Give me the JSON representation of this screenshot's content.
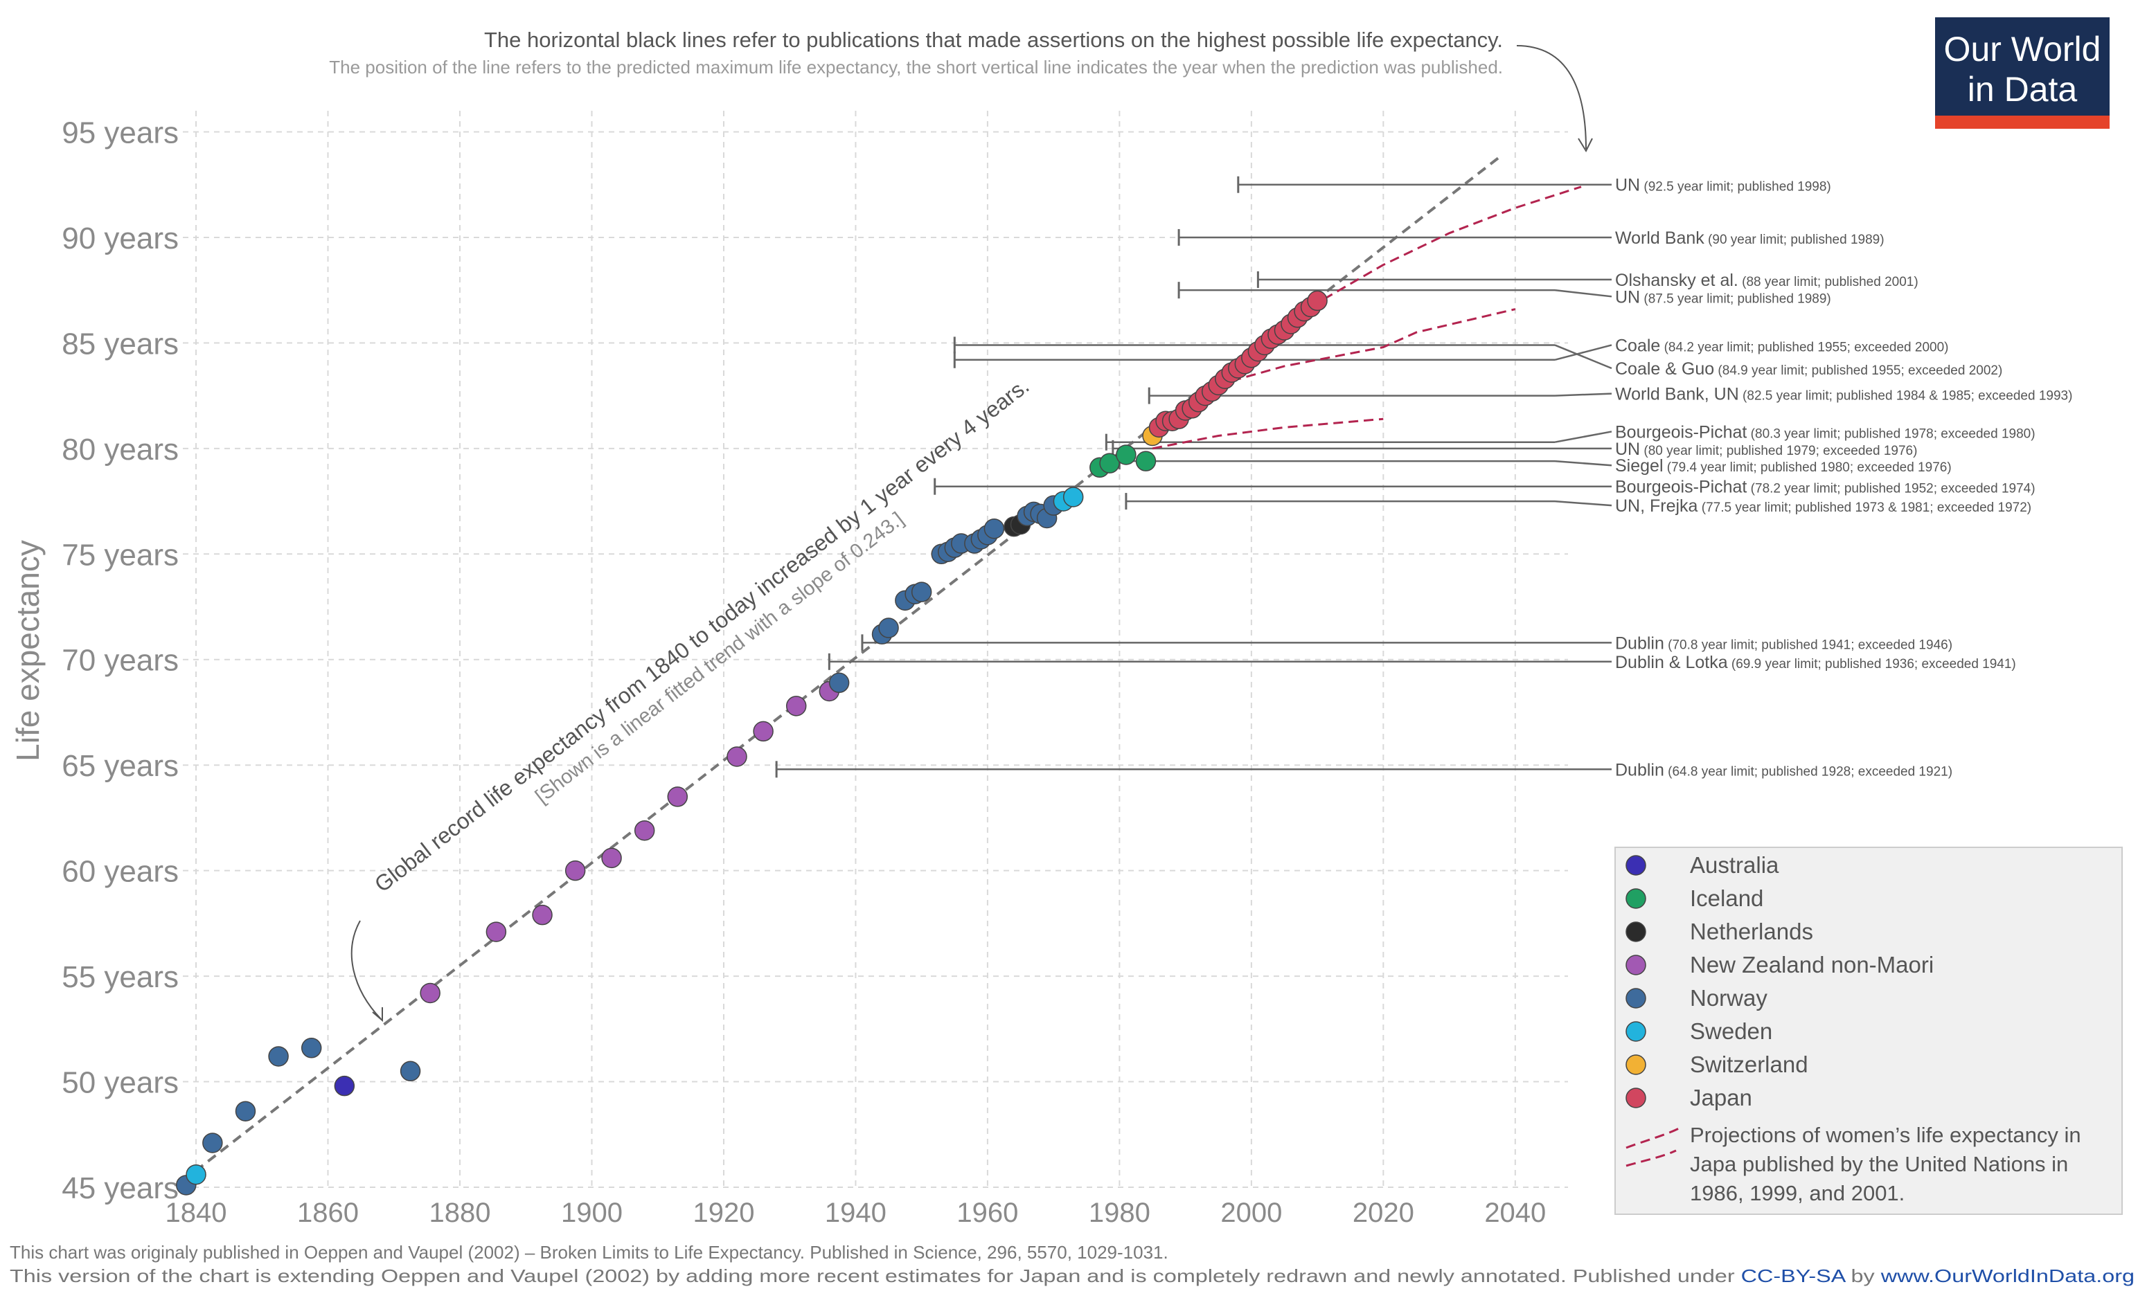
{
  "header": {
    "note_main": "The horizontal black lines refer to publications that made assertions on the highest possible life expectancy.",
    "note_sub": "The position of the line refers to the predicted maximum life expectancy, the short vertical line indicates the year when the prediction was published."
  },
  "logo": {
    "line1": "Our World",
    "line2": "in Data",
    "bg": "#1a2f55",
    "accent": "#e5432a"
  },
  "footer": {
    "line1": "This chart was originaly published in Oeppen and Vaupel (2002) – Broken Limits to Life Expectancy. Published in Science, 296, 5570, 1029-1031.",
    "line2_prefix": "This version of the chart is extending Oeppen and Vaupel (2002) by adding more recent estimates for Japan and is completely redrawn and newly annotated. Published under ",
    "license": "CC-BY-SA",
    "by": " by ",
    "site": "www.OurWorldInData.org",
    "link_color": "#1f4fa8"
  },
  "chart_data": {
    "type": "scatter",
    "ylabel": "Life expectancy",
    "xlim": [
      1838,
      2048
    ],
    "ylim": [
      45,
      96
    ],
    "x_ticks": [
      1840,
      1860,
      1880,
      1900,
      1920,
      1940,
      1960,
      1980,
      2000,
      2020,
      2040
    ],
    "y_ticks": [
      {
        "value": 45,
        "label": "45 years"
      },
      {
        "value": 50,
        "label": "50 years"
      },
      {
        "value": 55,
        "label": "55 years"
      },
      {
        "value": 60,
        "label": "60 years"
      },
      {
        "value": 65,
        "label": "65 years"
      },
      {
        "value": 70,
        "label": "70 years"
      },
      {
        "value": 75,
        "label": "75 years"
      },
      {
        "value": 80,
        "label": "80 years"
      },
      {
        "value": 85,
        "label": "85 years"
      },
      {
        "value": 90,
        "label": "90 years"
      },
      {
        "value": 95,
        "label": "95 years"
      }
    ],
    "grid": true,
    "trend": {
      "slope": 0.243,
      "from": [
        1838,
        45.3
      ],
      "to": [
        2038,
        93.9
      ],
      "annotation_line1": "Global record life expectancy from 1840 to today increased by 1 year every 4 years.",
      "annotation_line2": "[Shown is a linear fitted trend with a slope of 0.243.]"
    },
    "series": [
      {
        "name": "Australia",
        "color": "#3b2fb3",
        "points": [
          [
            1862.5,
            49.8
          ]
        ]
      },
      {
        "name": "Iceland",
        "color": "#20a063",
        "points": [
          [
            1977,
            79.1
          ],
          [
            1978.5,
            79.3
          ],
          [
            1981,
            79.7
          ],
          [
            1984,
            79.4
          ]
        ]
      },
      {
        "name": "Netherlands",
        "color": "#2b2b2b",
        "points": [
          [
            1964,
            76.3
          ],
          [
            1965,
            76.4
          ]
        ]
      },
      {
        "name": "New Zealand non-Maori",
        "color": "#a259b3",
        "points": [
          [
            1875.5,
            54.2
          ],
          [
            1885.5,
            57.1
          ],
          [
            1892.5,
            57.9
          ],
          [
            1897.5,
            60.0
          ],
          [
            1903,
            60.6
          ],
          [
            1908,
            61.9
          ],
          [
            1913,
            63.5
          ],
          [
            1922,
            65.4
          ],
          [
            1926,
            66.6
          ],
          [
            1931,
            67.8
          ],
          [
            1936,
            68.5
          ]
        ]
      },
      {
        "name": "Norway",
        "color": "#3e6b9c",
        "points": [
          [
            1838.5,
            45.1
          ],
          [
            1842.5,
            47.1
          ],
          [
            1847.5,
            48.6
          ],
          [
            1852.5,
            51.2
          ],
          [
            1857.5,
            51.6
          ],
          [
            1872.5,
            50.5
          ],
          [
            1937.5,
            68.9
          ],
          [
            1944,
            71.2
          ],
          [
            1945,
            71.5
          ],
          [
            1947.5,
            72.8
          ],
          [
            1949,
            73.1
          ],
          [
            1950,
            73.2
          ],
          [
            1953,
            75.0
          ],
          [
            1954,
            75.1
          ],
          [
            1955,
            75.3
          ],
          [
            1956,
            75.5
          ],
          [
            1958,
            75.5
          ],
          [
            1959,
            75.7
          ],
          [
            1960,
            75.9
          ],
          [
            1961,
            76.2
          ],
          [
            1966,
            76.8
          ],
          [
            1967,
            77.0
          ],
          [
            1968,
            76.9
          ],
          [
            1969,
            76.7
          ],
          [
            1970,
            77.3
          ]
        ]
      },
      {
        "name": "Sweden",
        "color": "#22b3dd",
        "points": [
          [
            1840,
            45.6
          ],
          [
            1971.5,
            77.5
          ],
          [
            1973,
            77.7
          ]
        ]
      },
      {
        "name": "Switzerland",
        "color": "#f2b134",
        "points": [
          [
            1985,
            80.6
          ]
        ]
      },
      {
        "name": "Japan",
        "color": "#d1465f",
        "points": [
          [
            1986,
            81.0
          ],
          [
            1987,
            81.3
          ],
          [
            1988,
            81.3
          ],
          [
            1989,
            81.4
          ],
          [
            1990,
            81.8
          ],
          [
            1991,
            81.9
          ],
          [
            1992,
            82.2
          ],
          [
            1993,
            82.5
          ],
          [
            1994,
            82.7
          ],
          [
            1995,
            83.0
          ],
          [
            1996,
            83.3
          ],
          [
            1997,
            83.6
          ],
          [
            1998,
            83.8
          ],
          [
            1999,
            84.0
          ],
          [
            2000,
            84.3
          ],
          [
            2001,
            84.6
          ],
          [
            2002,
            84.9
          ],
          [
            2003,
            85.2
          ],
          [
            2004,
            85.4
          ],
          [
            2005,
            85.6
          ],
          [
            2006,
            85.9
          ],
          [
            2007,
            86.2
          ],
          [
            2008,
            86.5
          ],
          [
            2009,
            86.7
          ],
          [
            2010,
            87.0
          ]
        ]
      }
    ],
    "projections": {
      "name": "Projections of women’s life expectancy in Japa published by the United Nations in 1986, 1999, and 2001.",
      "legend_lines": [
        "Projections of women’s life expectancy in",
        "Japa published by the United Nations in",
        "1986, 1999, and 2001."
      ],
      "color": "#b3244f",
      "lines": [
        [
          [
            1985,
            80.0
          ],
          [
            1995,
            80.6
          ],
          [
            2005,
            81.0
          ],
          [
            2020,
            81.4
          ]
        ],
        [
          [
            1997,
            83.2
          ],
          [
            2005,
            83.9
          ],
          [
            2020,
            84.8
          ],
          [
            2025,
            85.5
          ],
          [
            2040,
            86.6
          ]
        ],
        [
          [
            2004,
            85.2
          ],
          [
            2010,
            86.9
          ],
          [
            2020,
            88.7
          ],
          [
            2030,
            90.2
          ],
          [
            2040,
            91.4
          ],
          [
            2050,
            92.4
          ]
        ]
      ]
    },
    "limits": [
      {
        "name": "UN",
        "details": "(92.5 year limit; published 1998)",
        "value": 92.5,
        "published": 1998,
        "label_y": 92.5
      },
      {
        "name": "World Bank",
        "details": "(90 year limit; published 1989)",
        "value": 90,
        "published": 1989,
        "label_y": 90.0
      },
      {
        "name": "Olshansky et al.",
        "details": "(88 year limit; published 2001)",
        "value": 88,
        "published": 2001,
        "label_y": 88.0
      },
      {
        "name": "UN",
        "details": "(87.5 year limit; published 1989)",
        "value": 87.5,
        "published": 1989,
        "label_y": 87.2
      },
      {
        "name": "Coale",
        "details": "(84.2 year limit; published 1955; exceeded 2000)",
        "value": 84.2,
        "published": 1955,
        "label_y": 84.9
      },
      {
        "name": "Coale & Guo",
        "details": "(84.9 year limit; published 1955; exceeded 2002)",
        "value": 84.9,
        "published": 1955,
        "label_y": 83.8
      },
      {
        "name": "World Bank, UN",
        "details": "(82.5 year limit; published 1984 & 1985; exceeded 1993)",
        "value": 82.5,
        "published": 1984.5,
        "label_y": 82.6
      },
      {
        "name": "Bourgeois-Pichat",
        "details": "(80.3 year limit; published 1978; exceeded 1980)",
        "value": 80.3,
        "published": 1978,
        "label_y": 80.8
      },
      {
        "name": "UN",
        "details": "(80 year limit; published 1979; exceeded 1976)",
        "value": 80,
        "published": 1979,
        "label_y": 80.0
      },
      {
        "name": "Siegel",
        "details": "(79.4 year limit; published 1980; exceeded 1976)",
        "value": 79.4,
        "published": 1980,
        "label_y": 79.2
      },
      {
        "name": "Bourgeois-Pichat",
        "details": "(78.2 year limit; published 1952; exceeded 1974)",
        "value": 78.2,
        "published": 1952,
        "label_y": 78.2
      },
      {
        "name": "UN, Frejka",
        "details": "(77.5 year limit; published 1973 & 1981; exceeded 1972)",
        "value": 77.5,
        "published": 1981,
        "label_y": 77.3
      },
      {
        "name": "Dublin",
        "details": "(70.8 year limit; published 1941; exceeded 1946)",
        "value": 70.8,
        "published": 1941,
        "label_y": 70.8
      },
      {
        "name": "Dublin & Lotka",
        "details": "(69.9 year limit; published 1936; exceeded 1941)",
        "value": 69.9,
        "published": 1936,
        "label_y": 69.9
      },
      {
        "name": "Dublin",
        "details": "(64.8 year limit; published 1928; exceeded 1921)",
        "value": 64.8,
        "published": 1928,
        "label_y": 64.8
      }
    ]
  }
}
